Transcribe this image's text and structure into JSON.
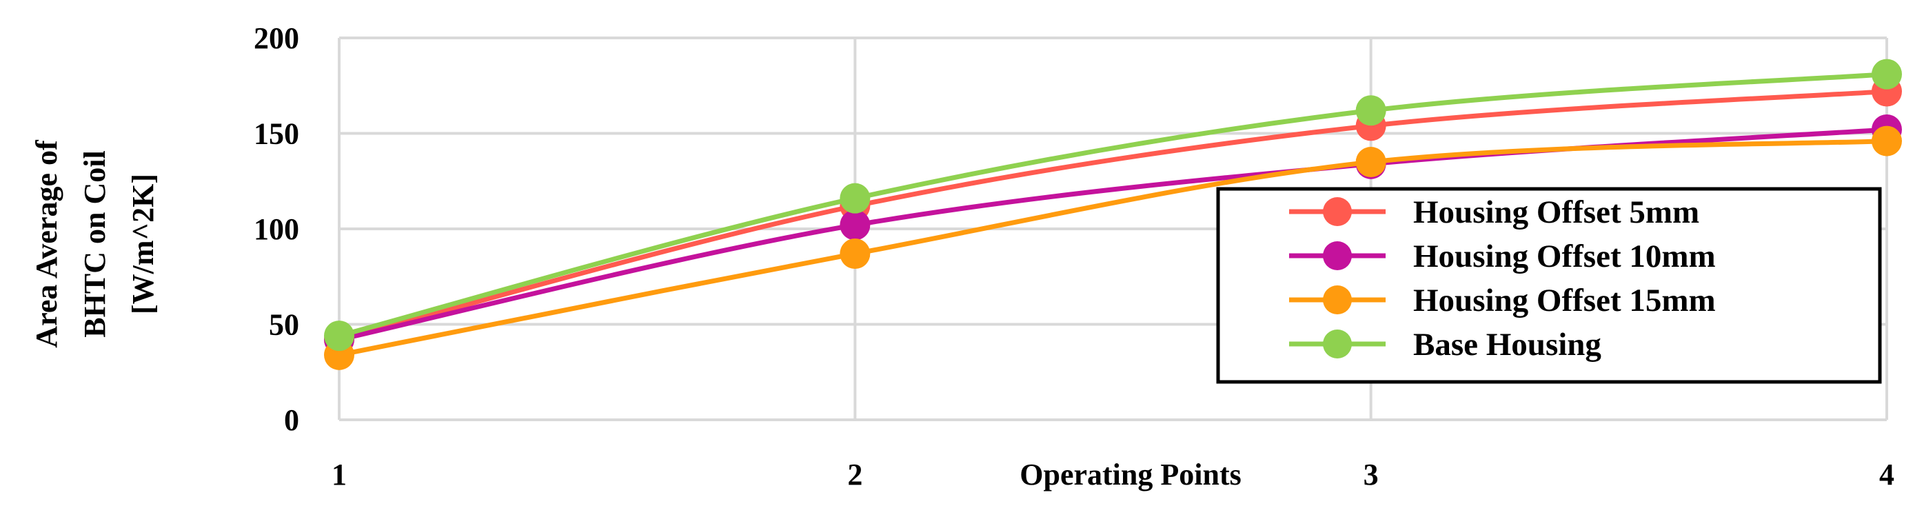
{
  "chart_data": {
    "type": "line",
    "x": [
      1,
      2,
      3,
      4
    ],
    "xlabel": "Operating Points",
    "ylabel": [
      "Area Average of",
      "BHTC on Coil",
      "[W/m^2K]"
    ],
    "xlim": [
      1,
      4
    ],
    "ylim": [
      0,
      200
    ],
    "xticks": [
      "1",
      "2",
      "3",
      "4"
    ],
    "yticks": [
      "0",
      "50",
      "100",
      "150",
      "200"
    ],
    "grid": true,
    "legend_position": "right",
    "series": [
      {
        "name": "Housing Offset 5mm",
        "color": "#ff5a4f",
        "values": [
          42,
          112,
          154,
          172
        ]
      },
      {
        "name": "Housing Offset 10mm",
        "color": "#c4129c",
        "values": [
          42,
          102,
          134,
          152
        ]
      },
      {
        "name": "Housing Offset 15mm",
        "color": "#ff9b0e",
        "values": [
          34,
          87,
          135,
          146
        ]
      },
      {
        "name": "Base Housing",
        "color": "#8fd14f",
        "values": [
          44,
          116,
          162,
          181
        ]
      }
    ]
  }
}
